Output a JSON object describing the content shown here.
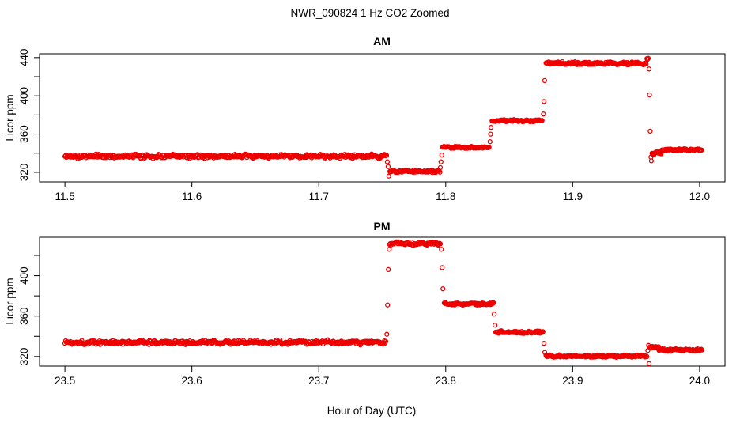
{
  "figure": {
    "title": "NWR_090824  1 Hz CO2 Zoomed",
    "xlabel": "Hour of Day (UTC)",
    "point_color": "#ee0000",
    "axis_color": "#000000",
    "marker": "open-circle"
  },
  "chart_data": [
    {
      "type": "scatter",
      "title": "AM",
      "ylabel": "Licor ppm",
      "sample_rate_hz": 1,
      "xlim": [
        11.48,
        12.02
      ],
      "ylim": [
        310,
        444
      ],
      "x_ticks": [
        11.5,
        11.6,
        11.7,
        11.8,
        11.9,
        12.0
      ],
      "x_tick_labels": [
        "11.5",
        "11.6",
        "11.7",
        "11.8",
        "11.9",
        "12.0"
      ],
      "y_ticks": [
        320,
        340,
        360,
        380,
        400,
        420,
        440
      ],
      "y_tick_labels": [
        "320",
        "",
        "360",
        "",
        "400",
        "",
        "440"
      ],
      "grid": false,
      "segments": [
        {
          "t0": 11.5,
          "t1": 11.7535,
          "v": 336.8,
          "jitter": 1.6,
          "wobble": 0.5
        },
        {
          "t0": 11.756,
          "t1": 11.7955,
          "v": 321.0,
          "jitter": 1.0,
          "wobble": 0.3
        },
        {
          "t0": 11.7975,
          "t1": 11.8345,
          "v": 346.0,
          "jitter": 0.8,
          "wobble": 0.3
        },
        {
          "t0": 11.8365,
          "t1": 11.8765,
          "v": 374.0,
          "jitter": 0.8,
          "wobble": 0.3
        },
        {
          "t0": 11.879,
          "t1": 11.958,
          "v": 434.0,
          "jitter": 1.1,
          "wobble": 0.4
        },
        {
          "t0": 11.9585,
          "t1": 11.9597,
          "v": 438.5,
          "jitter": 1.2,
          "wobble": 0
        },
        {
          "t0": 11.9625,
          "t1": 11.97,
          "v": 340.0,
          "jitter": 1.6,
          "wobble": 0
        },
        {
          "t0": 11.97,
          "t1": 12.002,
          "v": 343.5,
          "jitter": 1.0,
          "wobble": 0.3
        }
      ],
      "transition_points": [
        {
          "t": 11.754,
          "v": 331
        },
        {
          "t": 11.7546,
          "v": 326
        },
        {
          "t": 11.7552,
          "v": 316
        },
        {
          "t": 11.7958,
          "v": 325
        },
        {
          "t": 11.7963,
          "v": 331
        },
        {
          "t": 11.7969,
          "v": 338
        },
        {
          "t": 11.8349,
          "v": 352
        },
        {
          "t": 11.8353,
          "v": 360
        },
        {
          "t": 11.8357,
          "v": 367
        },
        {
          "t": 11.877,
          "v": 381
        },
        {
          "t": 11.8774,
          "v": 394
        },
        {
          "t": 11.8779,
          "v": 416
        },
        {
          "t": 11.9602,
          "v": 428
        },
        {
          "t": 11.9605,
          "v": 401
        },
        {
          "t": 11.9611,
          "v": 363
        },
        {
          "t": 11.9617,
          "v": 336
        },
        {
          "t": 11.962,
          "v": 332
        }
      ]
    },
    {
      "type": "scatter",
      "title": "PM",
      "ylabel": "Licor ppm",
      "sample_rate_hz": 1,
      "xlim": [
        23.48,
        24.02
      ],
      "ylim": [
        310.5,
        438
      ],
      "x_ticks": [
        23.5,
        23.6,
        23.7,
        23.8,
        23.9,
        24.0
      ],
      "x_tick_labels": [
        "23.5",
        "23.6",
        "23.7",
        "23.8",
        "23.9",
        "24.0"
      ],
      "y_ticks": [
        320,
        340,
        360,
        380,
        400,
        420
      ],
      "y_tick_labels": [
        "320",
        "",
        "360",
        "",
        "400",
        ""
      ],
      "grid": false,
      "segments": [
        {
          "t0": 23.5,
          "t1": 23.753,
          "v": 334.0,
          "jitter": 1.6,
          "wobble": 0.5
        },
        {
          "t0": 23.7558,
          "t1": 23.796,
          "v": 432.0,
          "jitter": 1.3,
          "wobble": 0.4
        },
        {
          "t0": 23.7988,
          "t1": 23.8378,
          "v": 372.0,
          "jitter": 0.9,
          "wobble": 0.3
        },
        {
          "t0": 23.8394,
          "t1": 23.8768,
          "v": 344.0,
          "jitter": 0.9,
          "wobble": 0.3
        },
        {
          "t0": 23.879,
          "t1": 23.9588,
          "v": 320.5,
          "jitter": 0.9,
          "wobble": 0.3
        },
        {
          "t0": 23.9605,
          "t1": 23.968,
          "v": 329.0,
          "jitter": 1.3,
          "wobble": 0
        },
        {
          "t0": 23.968,
          "t1": 24.002,
          "v": 326.5,
          "jitter": 1.0,
          "wobble": 0.3
        }
      ],
      "transition_points": [
        {
          "t": 23.7536,
          "v": 342
        },
        {
          "t": 23.7542,
          "v": 371
        },
        {
          "t": 23.7548,
          "v": 406
        },
        {
          "t": 23.7554,
          "v": 426
        },
        {
          "t": 23.7966,
          "v": 426
        },
        {
          "t": 23.7972,
          "v": 408
        },
        {
          "t": 23.7978,
          "v": 387
        },
        {
          "t": 23.8382,
          "v": 362
        },
        {
          "t": 23.8388,
          "v": 351
        },
        {
          "t": 23.8774,
          "v": 333
        },
        {
          "t": 23.878,
          "v": 324
        },
        {
          "t": 23.9592,
          "v": 326
        },
        {
          "t": 23.9598,
          "v": 331
        },
        {
          "t": 23.9603,
          "v": 313
        }
      ]
    }
  ]
}
